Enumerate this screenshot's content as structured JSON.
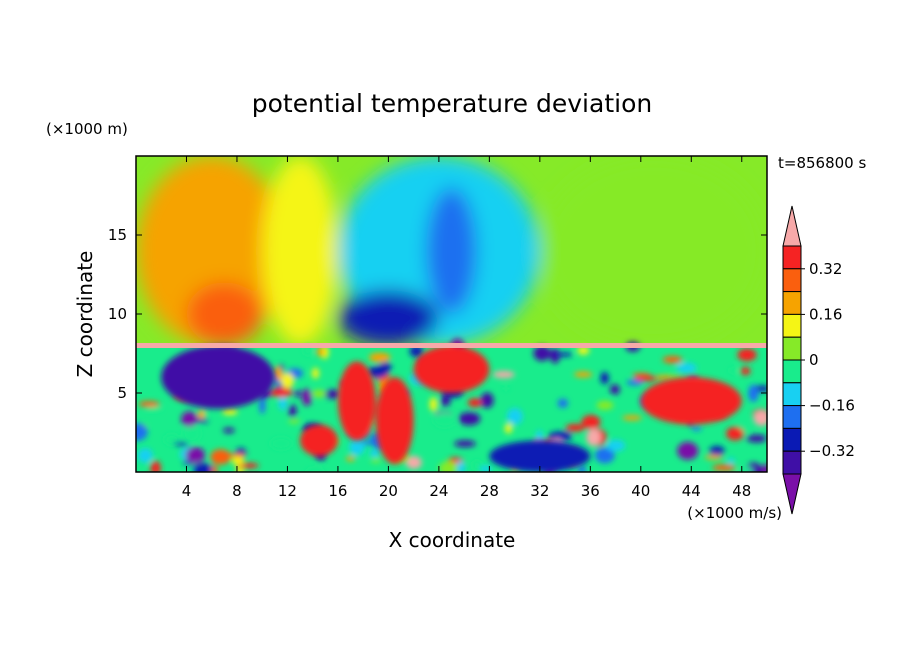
{
  "chart_data": {
    "type": "heatmap",
    "title": "potential temperature deviation",
    "xlabel": "X coordinate",
    "ylabel": "Z coordinate",
    "x_unit": "(×1000 m/s)",
    "y_unit": "(×1000 m)",
    "time_label": "t=856800 s",
    "xlim": [
      0,
      50
    ],
    "ylim": [
      0,
      20
    ],
    "x_ticks": [
      "4",
      "8",
      "12",
      "16",
      "20",
      "24",
      "28",
      "32",
      "36",
      "40",
      "44",
      "48"
    ],
    "y_ticks": [
      "5",
      "10",
      "15"
    ],
    "colorbar": {
      "levels": [
        -0.4,
        -0.32,
        -0.24,
        -0.16,
        -0.08,
        0,
        0.08,
        0.16,
        0.24,
        0.32,
        0.4
      ],
      "tick_labels": [
        "0.32",
        "0.16",
        "0",
        "−0.16",
        "−0.32"
      ],
      "colors": [
        "#7a0fa8",
        "#3f0fa6",
        "#0a1ab4",
        "#1e6ff0",
        "#18d0f2",
        "#19ec8c",
        "#86ea28",
        "#f5f515",
        "#f6a300",
        "#fa5f0e",
        "#f52323",
        "#f7a9a9"
      ]
    },
    "upper_regions": [
      {
        "x": [
          0,
          12
        ],
        "z": [
          8,
          20
        ],
        "value": 0.2
      },
      {
        "x": [
          4,
          10
        ],
        "z": [
          8,
          12
        ],
        "value": 0.28
      },
      {
        "x": [
          10,
          16
        ],
        "z": [
          8,
          20
        ],
        "value": 0.1
      },
      {
        "x": [
          16,
          32
        ],
        "z": [
          8,
          20
        ],
        "value": -0.12
      },
      {
        "x": [
          16,
          24
        ],
        "z": [
          8,
          11.5
        ],
        "value": -0.3
      },
      {
        "x": [
          23,
          27
        ],
        "z": [
          10,
          18
        ],
        "value": -0.2
      },
      {
        "x": [
          32,
          50
        ],
        "z": [
          8,
          20
        ],
        "value": 0.06
      }
    ],
    "lower_regions": [
      {
        "x": [
          2,
          11
        ],
        "z": [
          4,
          8
        ],
        "value": -0.38
      },
      {
        "x": [
          13,
          16
        ],
        "z": [
          1,
          3
        ],
        "value": 0.38
      },
      {
        "x": [
          16,
          19
        ],
        "z": [
          2,
          7
        ],
        "value": 0.38
      },
      {
        "x": [
          19,
          22
        ],
        "z": [
          0.5,
          6
        ],
        "value": 0.38
      },
      {
        "x": [
          22,
          28
        ],
        "z": [
          5,
          8
        ],
        "value": 0.38
      },
      {
        "x": [
          28,
          36
        ],
        "z": [
          0,
          2
        ],
        "value": -0.32
      },
      {
        "x": [
          40,
          48
        ],
        "z": [
          3,
          6
        ],
        "value": 0.38
      }
    ]
  }
}
